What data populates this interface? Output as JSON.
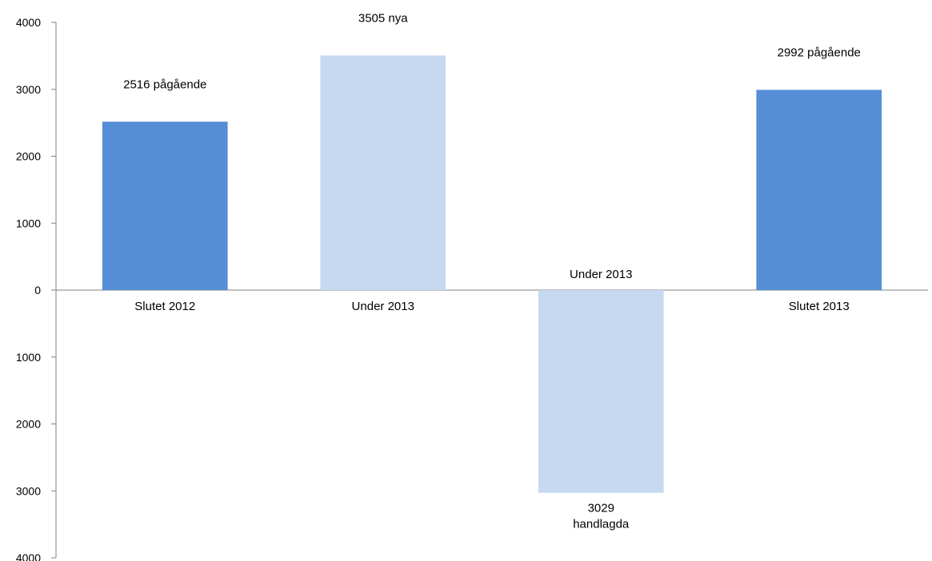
{
  "chart_data": {
    "type": "bar",
    "title": "",
    "xlabel": "",
    "ylabel": "",
    "ylim": [
      -4000,
      4000
    ],
    "yticks": [
      4000,
      3000,
      2000,
      1000,
      0,
      -1000,
      -2000,
      -3000,
      -4000
    ],
    "ytick_labels": [
      "4000",
      "3000",
      "2000",
      "1000",
      "0",
      "1000",
      "2000",
      "3000",
      "4000"
    ],
    "grid": false,
    "legend": "none",
    "categories": [
      "Slutet 2012",
      "Under 2013",
      "Under 2013",
      "Slutet 2013"
    ],
    "values": [
      2516,
      3505,
      -3029,
      2992
    ],
    "colors": [
      "#558ed5",
      "#c6d9f1",
      "#c6d9f1",
      "#558ed5"
    ],
    "data_labels": [
      [
        "2516 pågående"
      ],
      [
        "3505 nya"
      ],
      [
        "3029",
        "handlagda"
      ],
      [
        "2992 pågående"
      ]
    ]
  }
}
